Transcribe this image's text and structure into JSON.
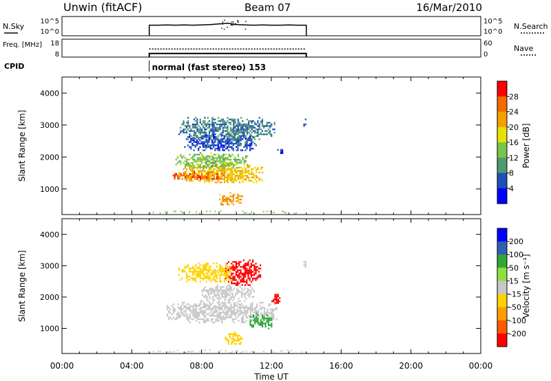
{
  "header": {
    "station": "Unwin (fitACF)",
    "beam": "Beam 07",
    "date": "16/Mar/2010"
  },
  "colors": {
    "power_scale": [
      "#0000ff",
      "#1f4fb8",
      "#4f9a6e",
      "#79c44a",
      "#e8e000",
      "#f4a000",
      "#f26c00",
      "#ff0000"
    ],
    "velocity_scale": [
      "#ff0000",
      "#ff5a00",
      "#ff9c00",
      "#ffd200",
      "#c8c8c8",
      "#8ee040",
      "#2fa838",
      "#2f5fb4",
      "#0000ff"
    ]
  },
  "chart_data": [
    {
      "type": "line",
      "panel": "noise",
      "left_label": "N.Sky",
      "right_label": "N.Search",
      "left_ticks": [
        "10^5",
        "10^0"
      ],
      "right_ticks": [
        "10^5",
        "10^0"
      ],
      "series": [
        {
          "name": "N.Sky",
          "x": [
            "05:00",
            "05:30",
            "06:00",
            "06:30",
            "07:00",
            "07:30",
            "08:00",
            "08:30",
            "09:00",
            "09:30",
            "10:00",
            "10:30",
            "11:00",
            "11:30",
            "12:00",
            "12:30",
            "13:00",
            "13:30",
            "14:00"
          ],
          "y": [
            3.2,
            3.2,
            3.3,
            3.2,
            3.3,
            3.2,
            3.3,
            3.4,
            3.6,
            3.8,
            3.4,
            3.3,
            3.2,
            3.3,
            3.2,
            3.2,
            3.3,
            3.2,
            3.2
          ]
        }
      ],
      "xlim": [
        "00:00",
        "24:00"
      ]
    },
    {
      "type": "line",
      "panel": "frequency",
      "left_label": "Freq. [MHz]",
      "right_label": "Nave",
      "left_ticks": [
        18,
        8
      ],
      "right_ticks": [
        60,
        0
      ],
      "series": [
        {
          "name": "Freq.",
          "x": [
            "05:00",
            "14:00"
          ],
          "y": [
            10,
            10
          ]
        },
        {
          "name": "Nave",
          "x": [
            "05:00",
            "14:00"
          ],
          "y": [
            27,
            27
          ]
        }
      ],
      "xlim": [
        "00:00",
        "24:00"
      ]
    },
    {
      "type": "table",
      "panel": "cpid",
      "label": "CPID",
      "text": "normal (fast stereo) 153",
      "start": "05:00"
    },
    {
      "type": "heatmap",
      "panel": "power",
      "ylabel": "Slant Range [km]",
      "yticks": [
        1000,
        2000,
        3000,
        4000
      ],
      "ylim": [
        200,
        4500
      ],
      "xlim": [
        "00:00",
        "24:00"
      ],
      "colorbar": {
        "label": "Power [dB]",
        "ticks": [
          4,
          8,
          12,
          16,
          20,
          24,
          28
        ]
      },
      "regions": [
        {
          "start": "06:40",
          "end": "11:30",
          "range_min": 1200,
          "range_max": 1800,
          "value": 20
        },
        {
          "start": "06:20",
          "end": "09:20",
          "range_min": 1300,
          "range_max": 1550,
          "value": 26
        },
        {
          "start": "06:30",
          "end": "10:40",
          "range_min": 1650,
          "range_max": 2150,
          "value": 14
        },
        {
          "start": "09:00",
          "end": "10:20",
          "range_min": 500,
          "range_max": 900,
          "value": 22
        },
        {
          "start": "06:40",
          "end": "12:10",
          "range_min": 2550,
          "range_max": 3250,
          "value": 8
        },
        {
          "start": "07:00",
          "end": "11:10",
          "range_min": 2200,
          "range_max": 2700,
          "value": 6
        },
        {
          "start": "12:20",
          "end": "12:40",
          "range_min": 2100,
          "range_max": 2300,
          "value": 6
        },
        {
          "start": "13:50",
          "end": "14:00",
          "range_min": 2900,
          "range_max": 3200,
          "value": 6
        }
      ]
    },
    {
      "type": "heatmap",
      "panel": "velocity",
      "ylabel": "Slant Range [km]",
      "xlabel": "Time UT",
      "yticks": [
        1000,
        2000,
        3000,
        4000
      ],
      "ylim": [
        200,
        4500
      ],
      "xlim": [
        "00:00",
        "24:00"
      ],
      "xticks": [
        "00:00",
        "04:00",
        "08:00",
        "12:00",
        "16:00",
        "20:00",
        "00:00"
      ],
      "colorbar": {
        "label": "Velocity [m s⁻¹]",
        "ticks": [
          200,
          100,
          50,
          15,
          -15,
          -50,
          -100,
          -200
        ]
      },
      "regions": [
        {
          "start": "06:00",
          "end": "12:20",
          "range_min": 1200,
          "range_max": 1900,
          "value": 0
        },
        {
          "start": "08:00",
          "end": "11:00",
          "range_min": 1900,
          "range_max": 2400,
          "value": 0
        },
        {
          "start": "09:20",
          "end": "11:20",
          "range_min": 2400,
          "range_max": 3200,
          "value": -250
        },
        {
          "start": "06:40",
          "end": "09:40",
          "range_min": 2500,
          "range_max": 3100,
          "value": -40
        },
        {
          "start": "12:00",
          "end": "12:30",
          "range_min": 1800,
          "range_max": 2100,
          "value": -250
        },
        {
          "start": "10:40",
          "end": "12:00",
          "range_min": 1000,
          "range_max": 1500,
          "value": 70
        },
        {
          "start": "09:20",
          "end": "10:20",
          "range_min": 500,
          "range_max": 900,
          "value": -40
        },
        {
          "start": "13:50",
          "end": "14:00",
          "range_min": 2900,
          "range_max": 3200,
          "value": 0
        }
      ]
    }
  ]
}
